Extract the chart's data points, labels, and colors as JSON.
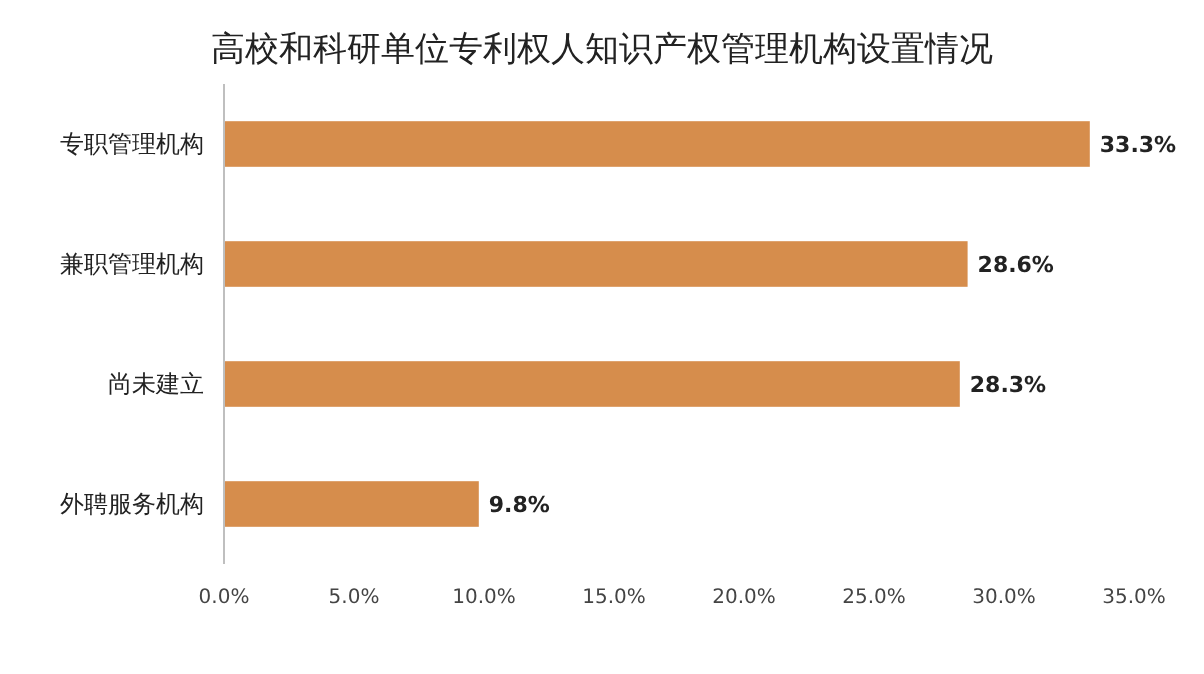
{
  "chart_data": {
    "type": "bar",
    "orientation": "horizontal",
    "title": "高校和科研单位专利权人知识产权管理机构设置情况",
    "categories": [
      "专职管理机构",
      "兼职管理机构",
      "尚未建立",
      "外聘服务机构"
    ],
    "values": [
      33.3,
      28.6,
      28.3,
      9.8
    ],
    "value_labels": [
      "33.3%",
      "28.6%",
      "28.3%",
      "9.8%"
    ],
    "color": "#d68d4c",
    "xlim": [
      0,
      35
    ],
    "xticks": [
      {
        "value": 0,
        "label": "0.0%"
      },
      {
        "value": 5,
        "label": "5.0%"
      },
      {
        "value": 10,
        "label": "10.0%"
      },
      {
        "value": 15,
        "label": "15.0%"
      },
      {
        "value": 20,
        "label": "20.0%"
      },
      {
        "value": 25,
        "label": "25.0%"
      },
      {
        "value": 30,
        "label": "30.0%"
      },
      {
        "value": 35,
        "label": "35.0%"
      }
    ],
    "grid": false
  }
}
